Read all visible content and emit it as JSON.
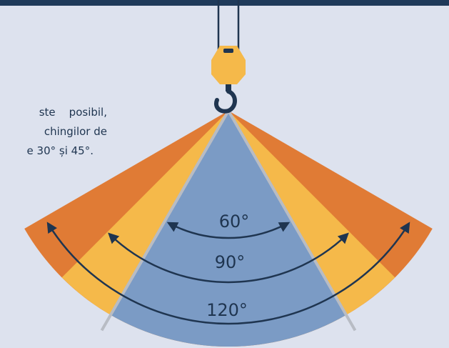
{
  "text_lines": [
    "ste    posibil,",
    "chingilor de",
    "e 30° și 45°."
  ],
  "angles": [
    "60°",
    "90°",
    "120°"
  ]
}
